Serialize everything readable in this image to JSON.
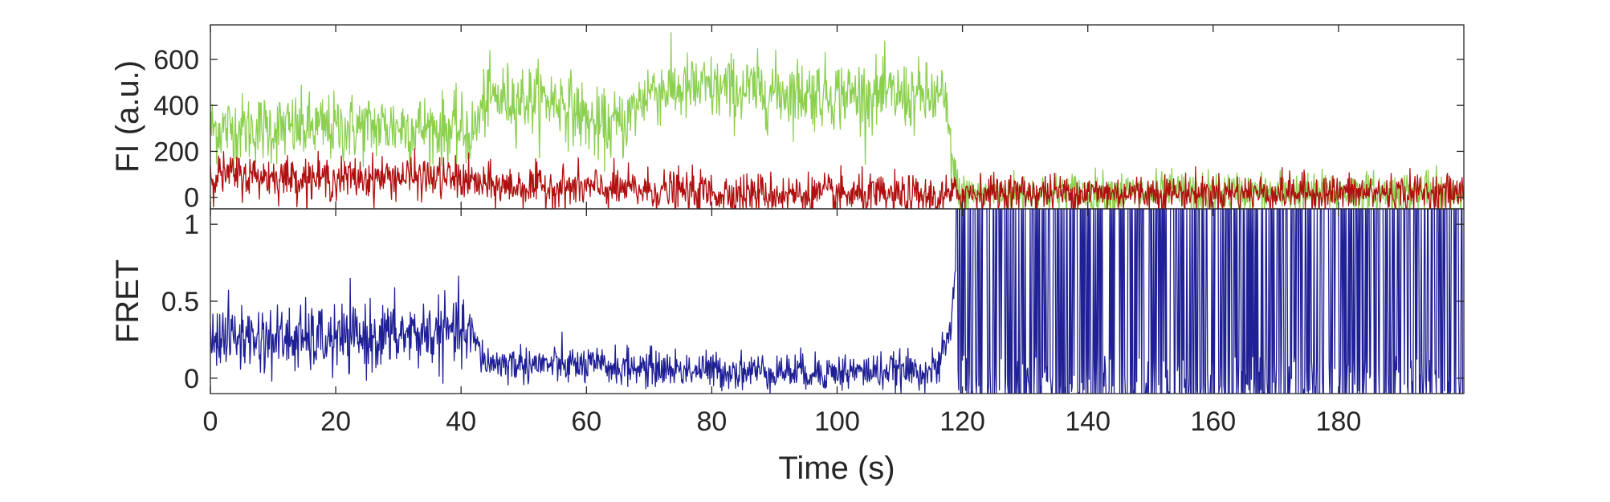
{
  "chart_data": [
    {
      "type": "line",
      "ylabel": "FI (a.u.)",
      "xlim": [
        0,
        200
      ],
      "ylim": [
        -50,
        750
      ],
      "yticks": [
        0,
        200,
        400,
        600
      ],
      "xticks": [
        0,
        20,
        40,
        60,
        80,
        100,
        120,
        140,
        160,
        180
      ],
      "grid": false,
      "legend": "none",
      "series": [
        {
          "color": "#8cd050",
          "x": [
            0,
            10,
            20,
            30,
            40,
            42,
            44,
            50,
            56,
            62,
            66,
            70,
            80,
            90,
            100,
            110,
            117,
            118,
            119,
            120,
            140,
            160,
            180,
            200
          ],
          "values": [
            300,
            300,
            300,
            310,
            290,
            280,
            430,
            430,
            420,
            300,
            320,
            470,
            470,
            460,
            450,
            440,
            430,
            250,
            40,
            20,
            20,
            20,
            20,
            20
          ]
        },
        {
          "color": "#b01010",
          "x": [
            0,
            10,
            20,
            30,
            40,
            44,
            60,
            80,
            100,
            117,
            120,
            140,
            160,
            180,
            200
          ],
          "values": [
            100,
            90,
            80,
            90,
            80,
            50,
            40,
            20,
            10,
            0,
            20,
            20,
            20,
            20,
            20
          ]
        }
      ]
    },
    {
      "type": "line",
      "ylabel": "FRET",
      "xlabel": "Time (s)",
      "xlim": [
        0,
        200
      ],
      "ylim": [
        -0.1,
        1.1
      ],
      "yticks": [
        0,
        0.5,
        1
      ],
      "xticks": [
        0,
        20,
        40,
        60,
        80,
        100,
        120,
        140,
        160,
        180
      ],
      "xticklabels": [
        "0",
        "20",
        "40",
        "60",
        "80",
        "100",
        "120",
        "140",
        "160",
        "180"
      ],
      "ytick_labels": [
        "0",
        "0.5",
        "1"
      ],
      "grid": false,
      "legend": "none",
      "series": [
        {
          "color": "#1f1f96",
          "x": [
            0,
            10,
            20,
            30,
            40,
            42,
            44,
            60,
            80,
            100,
            116,
            118,
            119,
            200
          ],
          "values": [
            0.28,
            0.25,
            0.25,
            0.28,
            0.3,
            0.25,
            0.1,
            0.08,
            0.05,
            0.04,
            0.05,
            0.3,
            0.7,
            0.7
          ]
        }
      ]
    }
  ],
  "labels": {
    "top_ylabel": "FI (a.u.)",
    "bottom_ylabel": "FRET",
    "xlabel": "Time (s)",
    "top_ytick_labels": [
      "0",
      "200",
      "400",
      "600"
    ],
    "bottom_ytick_labels": [
      "0",
      "0.5",
      "1"
    ],
    "xtick_labels": [
      "0",
      "20",
      "40",
      "60",
      "80",
      "100",
      "120",
      "140",
      "160",
      "180"
    ]
  }
}
